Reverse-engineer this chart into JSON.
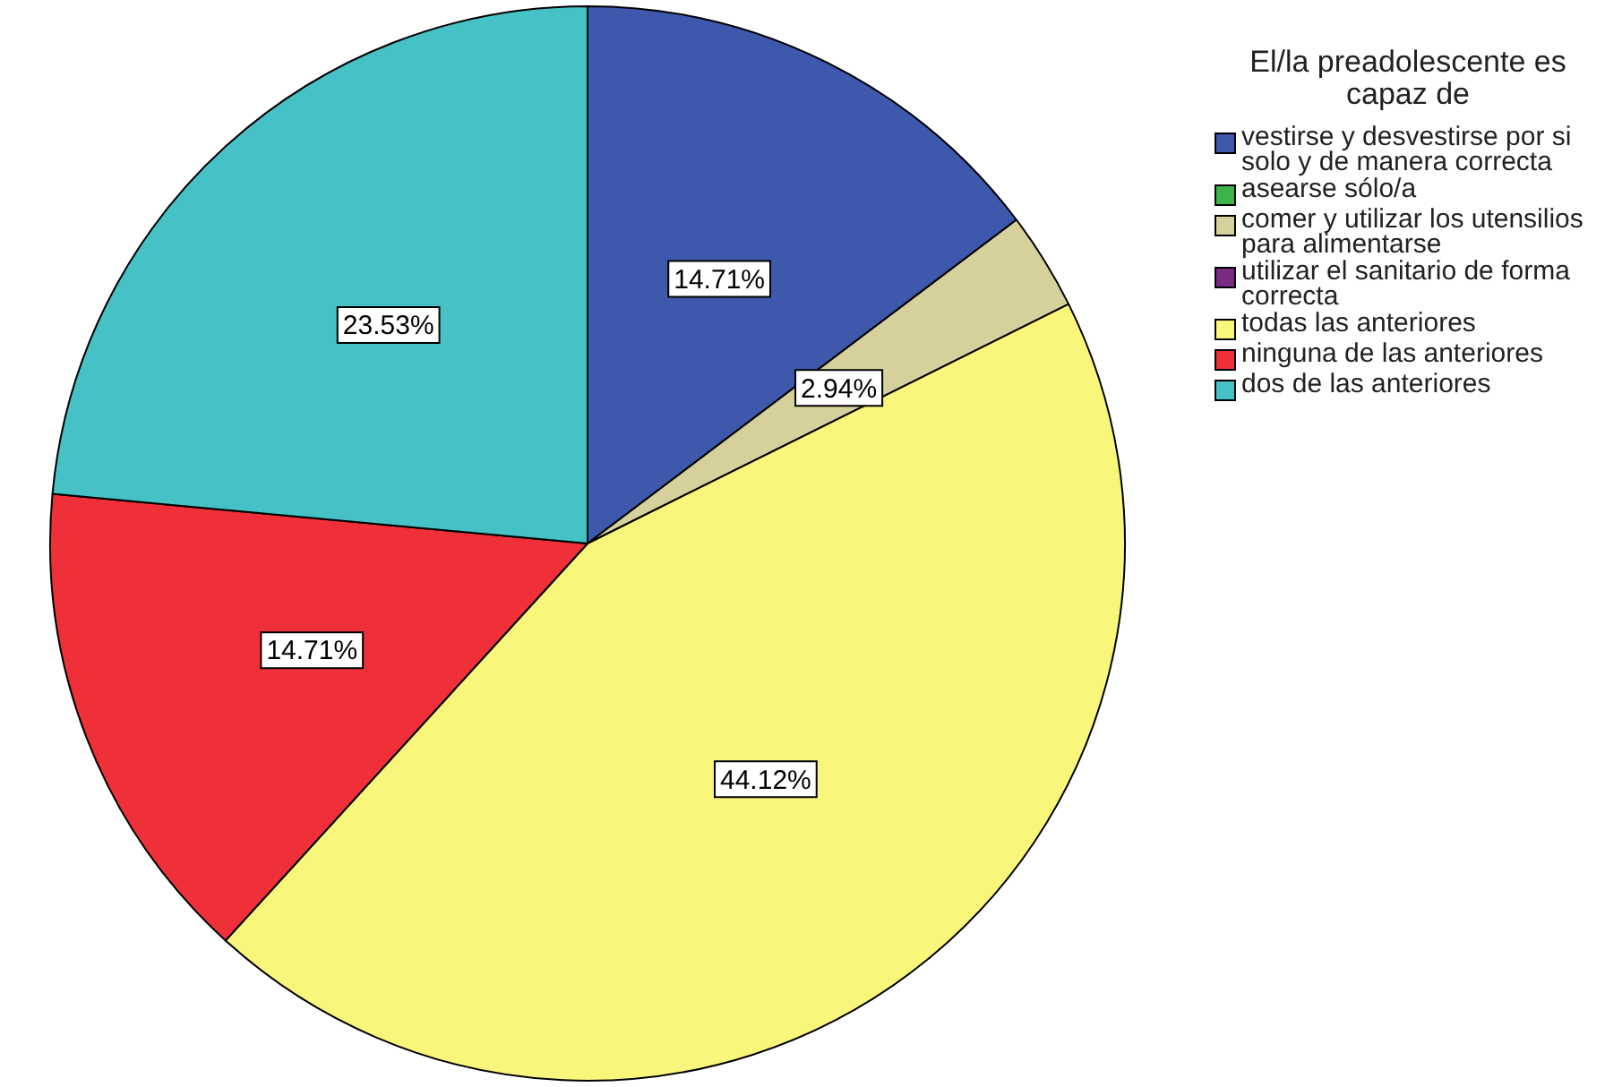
{
  "chart_data": {
    "type": "pie",
    "legend_title": "El/la preadolescente es capaz de",
    "legend": "right",
    "categories": [
      "vestirse y desvestirse por si solo y de manera correcta",
      "asearse sólo/a",
      "comer y utilizar los utensilios para alimentarse",
      "utilizar el sanitario de forma correcta",
      "todas las anteriores",
      "ninguna de las anteriores",
      "dos de las anteriores"
    ],
    "values": [
      14.71,
      0,
      2.94,
      0,
      44.12,
      14.71,
      23.53
    ],
    "colors": [
      "#3e58ac",
      "#3cb44a",
      "#d6d09c",
      "#7a2a82",
      "#f9f67c",
      "#ef3038",
      "#46c1c6"
    ],
    "value_labels": [
      "14.71%",
      null,
      "2.94%",
      null,
      "44.12%",
      "14.71%",
      "23.53%"
    ]
  }
}
